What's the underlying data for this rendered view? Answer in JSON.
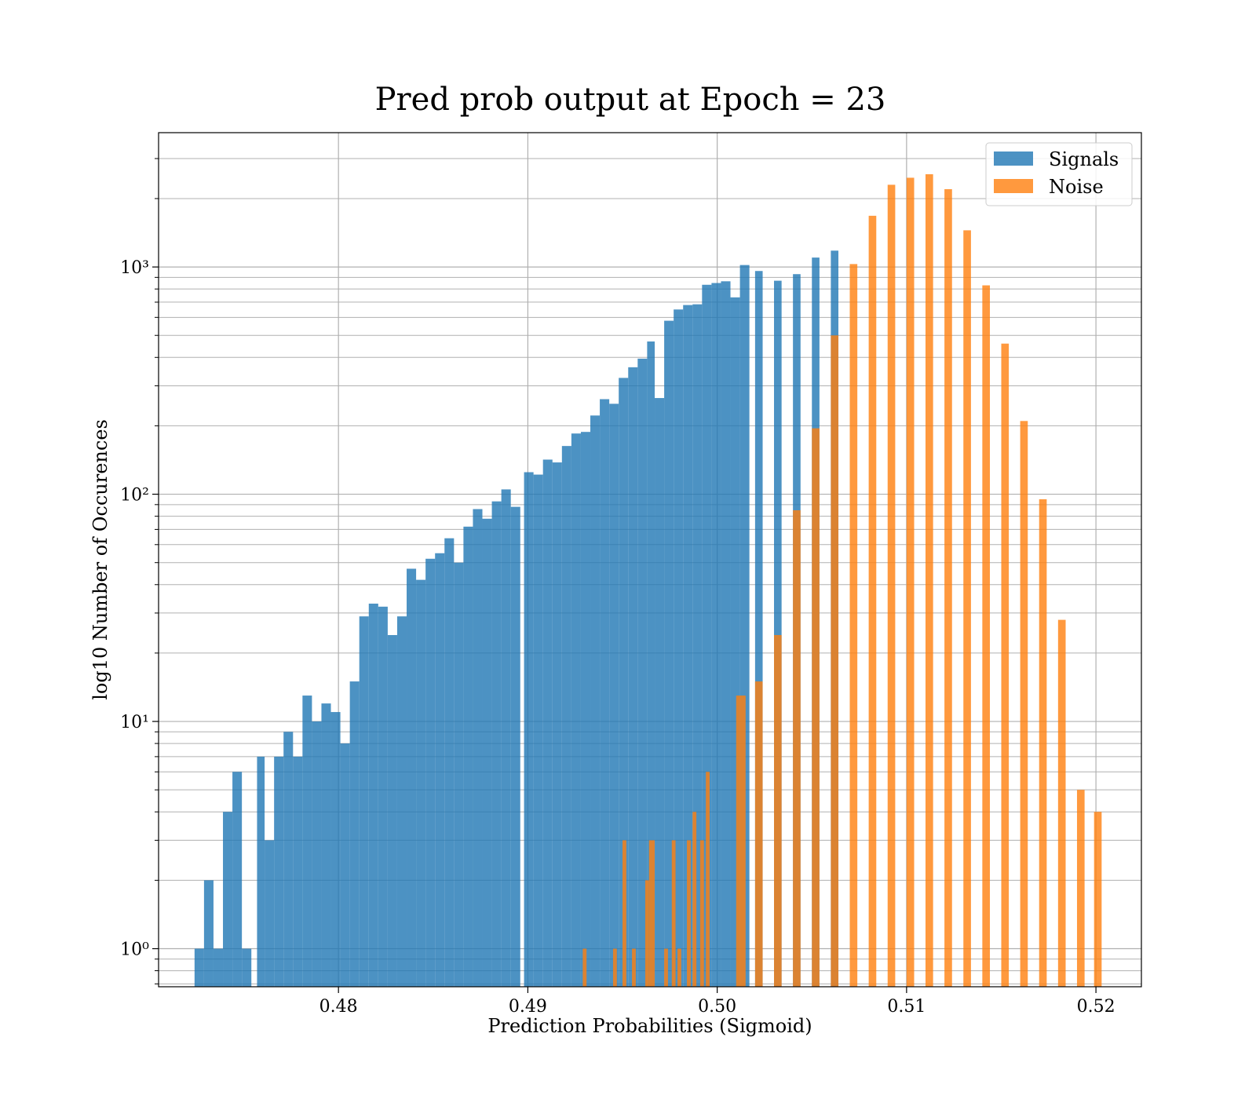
{
  "colors": {
    "signals": "#1f77b4",
    "noise": "#ff7f0e",
    "grid": "#b0b0b0",
    "axes": "#000000"
  },
  "chart_data": {
    "type": "bar",
    "subtype": "overlaid histogram",
    "title": "Pred prob output at Epoch = 23",
    "xlabel": "Prediction Probabilities (Sigmoid)",
    "ylabel": "log10 Number of Occurences",
    "xlim": [
      0.4705,
      0.5224
    ],
    "ylim": [
      0.68,
      3900
    ],
    "yscale": "log",
    "grid": true,
    "legend_position": "upper right",
    "x_ticks": [
      0.48,
      0.49,
      0.5,
      0.51,
      0.52
    ],
    "x_tick_labels": [
      "0.48",
      "0.49",
      "0.50",
      "0.51",
      "0.52"
    ],
    "y_ticks": [
      1,
      10,
      100,
      1000
    ],
    "y_tick_labels": [
      "10⁰",
      "10¹",
      "10²",
      "10³"
    ],
    "bar_alpha": 0.8,
    "series": [
      {
        "name": "Signals",
        "color": "#1f77b4",
        "bins": [
          [
            0.4724,
            0.4729,
            1
          ],
          [
            0.4729,
            0.4734,
            2
          ],
          [
            0.4734,
            0.4739,
            1
          ],
          [
            0.4739,
            0.4744,
            4
          ],
          [
            0.4744,
            0.4749,
            6
          ],
          [
            0.4749,
            0.4754,
            1
          ],
          [
            0.4757,
            0.4761,
            7
          ],
          [
            0.4761,
            0.4766,
            3
          ],
          [
            0.4766,
            0.4771,
            7
          ],
          [
            0.4771,
            0.4776,
            9
          ],
          [
            0.4776,
            0.4781,
            7
          ],
          [
            0.4781,
            0.4786,
            13
          ],
          [
            0.4786,
            0.4791,
            10
          ],
          [
            0.4791,
            0.4796,
            12
          ],
          [
            0.4796,
            0.4801,
            11
          ],
          [
            0.4801,
            0.4806,
            8
          ],
          [
            0.4806,
            0.4811,
            15
          ],
          [
            0.4811,
            0.4816,
            29
          ],
          [
            0.4816,
            0.4821,
            33
          ],
          [
            0.4821,
            0.4826,
            32
          ],
          [
            0.4826,
            0.4831,
            24
          ],
          [
            0.4831,
            0.4836,
            29
          ],
          [
            0.4836,
            0.4841,
            47
          ],
          [
            0.4841,
            0.4846,
            42
          ],
          [
            0.4846,
            0.4851,
            52
          ],
          [
            0.4851,
            0.4856,
            55
          ],
          [
            0.4856,
            0.4861,
            64
          ],
          [
            0.4861,
            0.4866,
            50
          ],
          [
            0.4866,
            0.4871,
            72
          ],
          [
            0.4871,
            0.4876,
            86
          ],
          [
            0.4876,
            0.4881,
            78
          ],
          [
            0.4881,
            0.4886,
            93
          ],
          [
            0.4886,
            0.4891,
            105
          ],
          [
            0.4891,
            0.4896,
            88
          ],
          [
            0.4898,
            0.4903,
            125
          ],
          [
            0.4903,
            0.4908,
            122
          ],
          [
            0.4908,
            0.4913,
            142
          ],
          [
            0.4913,
            0.4918,
            138
          ],
          [
            0.4918,
            0.4923,
            163
          ],
          [
            0.4923,
            0.4928,
            185
          ],
          [
            0.4928,
            0.4933,
            188
          ],
          [
            0.4933,
            0.4938,
            222
          ],
          [
            0.4938,
            0.4943,
            262
          ],
          [
            0.4943,
            0.4948,
            250
          ],
          [
            0.4948,
            0.4953,
            325
          ],
          [
            0.4953,
            0.4958,
            362
          ],
          [
            0.4958,
            0.4963,
            395
          ],
          [
            0.4963,
            0.4967,
            470
          ],
          [
            0.4967,
            0.4972,
            265
          ],
          [
            0.4972,
            0.4977,
            580
          ],
          [
            0.4977,
            0.4982,
            650
          ],
          [
            0.4982,
            0.4987,
            680
          ],
          [
            0.4987,
            0.4992,
            685
          ],
          [
            0.4992,
            0.4997,
            835
          ],
          [
            0.4997,
            0.5002,
            850
          ],
          [
            0.5002,
            0.5007,
            865
          ],
          [
            0.5007,
            0.5012,
            735
          ],
          [
            0.5012,
            0.5017,
            1020
          ],
          [
            0.502,
            0.5024,
            960
          ],
          [
            0.503,
            0.5034,
            870
          ],
          [
            0.504,
            0.5044,
            930
          ],
          [
            0.505,
            0.5054,
            1100
          ],
          [
            0.506,
            0.5064,
            1180
          ]
        ]
      },
      {
        "name": "Noise",
        "color": "#ff7f0e",
        "bins": [
          [
            0.4929,
            0.4931,
            1
          ],
          [
            0.4945,
            0.4947,
            1
          ],
          [
            0.495,
            0.4952,
            3
          ],
          [
            0.4955,
            0.4957,
            1
          ],
          [
            0.4962,
            0.4964,
            2
          ],
          [
            0.4964,
            0.4967,
            3
          ],
          [
            0.4972,
            0.4974,
            1
          ],
          [
            0.4976,
            0.4978,
            3
          ],
          [
            0.4979,
            0.4981,
            1
          ],
          [
            0.4984,
            0.4986,
            3
          ],
          [
            0.4987,
            0.4989,
            4
          ],
          [
            0.4991,
            0.4993,
            3
          ],
          [
            0.4994,
            0.4996,
            6
          ],
          [
            0.501,
            0.5015,
            13
          ],
          [
            0.502,
            0.5024,
            15
          ],
          [
            0.503,
            0.5034,
            24
          ],
          [
            0.504,
            0.5044,
            85
          ],
          [
            0.505,
            0.5054,
            195
          ],
          [
            0.506,
            0.5064,
            500
          ],
          [
            0.507,
            0.5074,
            1030
          ],
          [
            0.508,
            0.5084,
            1680
          ],
          [
            0.509,
            0.5094,
            2300
          ],
          [
            0.51,
            0.5104,
            2470
          ],
          [
            0.511,
            0.5114,
            2560
          ],
          [
            0.512,
            0.5124,
            2200
          ],
          [
            0.513,
            0.5134,
            1450
          ],
          [
            0.514,
            0.5144,
            830
          ],
          [
            0.515,
            0.5154,
            460
          ],
          [
            0.516,
            0.5164,
            210
          ],
          [
            0.517,
            0.5174,
            95
          ],
          [
            0.518,
            0.5184,
            28
          ],
          [
            0.519,
            0.5194,
            5
          ],
          [
            0.5199,
            0.5203,
            4
          ]
        ]
      }
    ]
  }
}
